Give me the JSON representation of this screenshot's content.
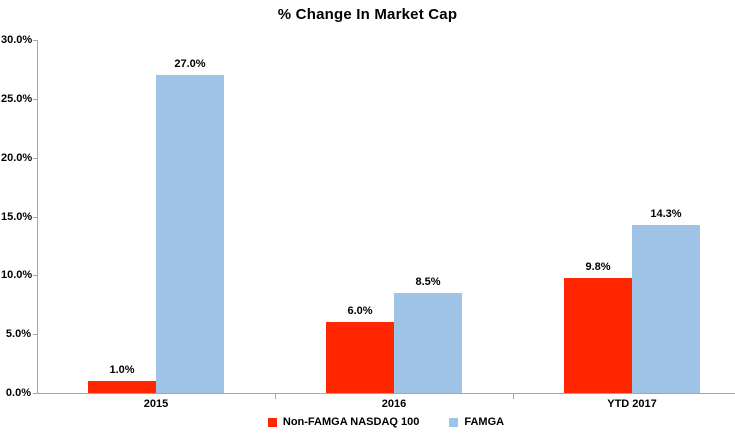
{
  "chart_data": {
    "type": "bar",
    "title": "% Change In Market Cap",
    "categories": [
      "2015",
      "2016",
      "YTD 2017"
    ],
    "series": [
      {
        "name": "Non-FAMGA NASDAQ 100",
        "color": "#ff2600",
        "values": [
          1.0,
          6.0,
          9.8
        ],
        "labels": [
          "1.0%",
          "6.0%",
          "9.8%"
        ]
      },
      {
        "name": "FAMGA",
        "color": "#9fc3e7",
        "values": [
          27.0,
          8.5,
          14.3
        ],
        "labels": [
          "27.0%",
          "8.5%",
          "14.3%"
        ]
      }
    ],
    "xlabel": "",
    "ylabel": "",
    "ylim": [
      0,
      30
    ],
    "y_ticks": [
      "0.0%",
      "5.0%",
      "10.0%",
      "15.0%",
      "20.0%",
      "25.0%",
      "30.0%"
    ],
    "grid": false,
    "legend_position": "bottom",
    "colors": {
      "axis": "#a6a6a6",
      "text": "#000000",
      "background": "#ffffff"
    }
  }
}
